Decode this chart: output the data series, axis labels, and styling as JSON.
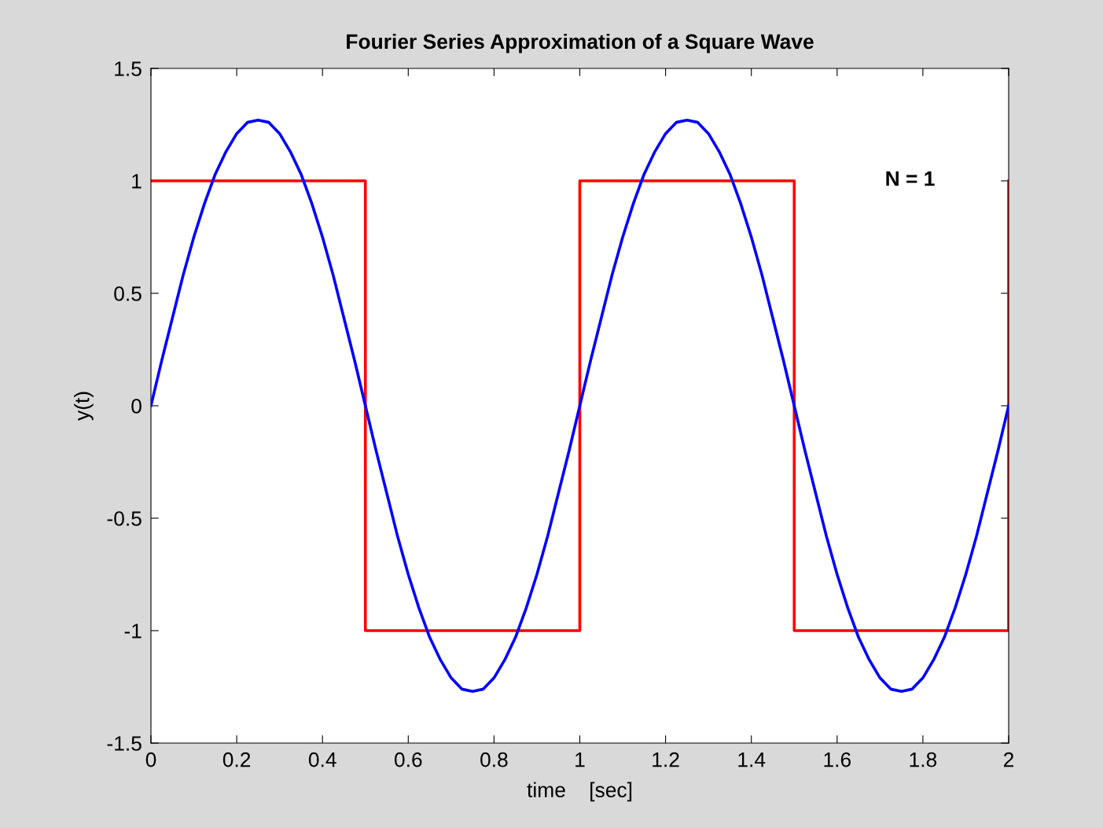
{
  "chart_data": {
    "type": "line",
    "title": "Fourier Series Approximation of a Square Wave",
    "xlabel": "time    [sec]",
    "ylabel": "y(t)",
    "annotations": [
      "N = 1"
    ],
    "xlim": [
      0,
      2
    ],
    "ylim": [
      -1.5,
      1.5
    ],
    "xticks": [
      0,
      0.2,
      0.4,
      0.6,
      0.8,
      1,
      1.2,
      1.4,
      1.6,
      1.8,
      2
    ],
    "yticks": [
      -1.5,
      -1,
      -0.5,
      0,
      0.5,
      1,
      1.5
    ],
    "grid": false,
    "legend": false,
    "marker": "none",
    "line_style": "solid",
    "series": [
      {
        "color": "#ff0000",
        "x": [
          0,
          0.5,
          0.5,
          1,
          1,
          1.5,
          1.5,
          2,
          2
        ],
        "values": [
          1,
          1,
          -1,
          -1,
          1,
          1,
          -1,
          -1,
          1
        ]
      },
      {
        "color": "#0000ff",
        "x": [
          0,
          0.025,
          0.05,
          0.075,
          0.1,
          0.125,
          0.15,
          0.175,
          0.2,
          0.225,
          0.25,
          0.275,
          0.3,
          0.325,
          0.35,
          0.375,
          0.4,
          0.425,
          0.45,
          0.475,
          0.5,
          0.525,
          0.55,
          0.575,
          0.6,
          0.625,
          0.65,
          0.675,
          0.7,
          0.725,
          0.75,
          0.775,
          0.8,
          0.825,
          0.85,
          0.875,
          0.9,
          0.925,
          0.95,
          0.975,
          1,
          1.025,
          1.05,
          1.075,
          1.1,
          1.125,
          1.15,
          1.175,
          1.2,
          1.225,
          1.25,
          1.275,
          1.3,
          1.325,
          1.35,
          1.375,
          1.4,
          1.425,
          1.45,
          1.475,
          1.5,
          1.525,
          1.55,
          1.575,
          1.6,
          1.625,
          1.65,
          1.675,
          1.7,
          1.725,
          1.75,
          1.775,
          1.8,
          1.825,
          1.85,
          1.875,
          1.9,
          1.925,
          1.95,
          1.975,
          2
        ],
        "values": [
          0,
          0.2,
          0.39,
          0.58,
          0.75,
          0.9,
          1.03,
          1.13,
          1.21,
          1.26,
          1.27,
          1.26,
          1.21,
          1.13,
          1.03,
          0.9,
          0.75,
          0.58,
          0.39,
          0.2,
          0,
          -0.2,
          -0.39,
          -0.58,
          -0.75,
          -0.9,
          -1.03,
          -1.13,
          -1.21,
          -1.26,
          -1.27,
          -1.26,
          -1.21,
          -1.13,
          -1.03,
          -0.9,
          -0.75,
          -0.58,
          -0.39,
          -0.2,
          0,
          0.2,
          0.39,
          0.58,
          0.75,
          0.9,
          1.03,
          1.13,
          1.21,
          1.26,
          1.27,
          1.26,
          1.21,
          1.13,
          1.03,
          0.9,
          0.75,
          0.58,
          0.39,
          0.2,
          0,
          -0.2,
          -0.39,
          -0.58,
          -0.75,
          -0.9,
          -1.03,
          -1.13,
          -1.21,
          -1.26,
          -1.27,
          -1.26,
          -1.21,
          -1.13,
          -1.03,
          -0.9,
          -0.75,
          -0.58,
          -0.39,
          -0.2,
          0
        ]
      }
    ]
  }
}
